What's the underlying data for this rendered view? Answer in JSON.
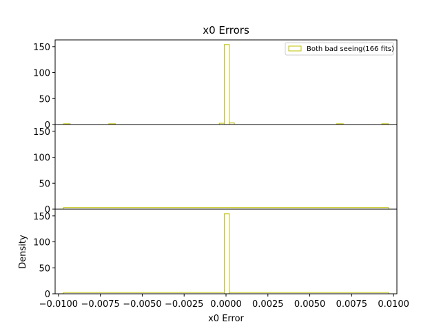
{
  "chart_data": {
    "type": "histogram",
    "title": "x0 Errors",
    "xlabel": "x0 Error",
    "ylabel": "Density",
    "xlim": [
      -0.0102,
      0.0102
    ],
    "x_ticks": [
      -0.01,
      -0.0075,
      -0.005,
      -0.0025,
      0.0,
      0.0025,
      0.005,
      0.0075,
      0.01
    ],
    "x_tick_labels": [
      "−0.0100",
      "−0.0075",
      "−0.0050",
      "−0.0025",
      "0.0000",
      "0.0025",
      "0.0050",
      "0.0075",
      "0.0100"
    ],
    "y_ticks": [
      0,
      50,
      100,
      150
    ],
    "y_tick_labels": [
      "0",
      "50",
      "100",
      "150"
    ],
    "color": "#bfbf00",
    "legend": {
      "label": "Both bad seeing(166 fits)",
      "location": "top-right"
    },
    "panels": [
      {
        "ylim": [
          0,
          163
        ],
        "bins": [
          {
            "x0": -0.0097,
            "x1": -0.0093,
            "value": 1.5
          },
          {
            "x0": -0.007,
            "x1": -0.0066,
            "value": 1.5
          },
          {
            "x0": -0.0004,
            "x1": -0.0001,
            "value": 2.5
          },
          {
            "x0": -0.0001,
            "x1": 0.0002,
            "value": 154
          },
          {
            "x0": 0.0002,
            "x1": 0.0005,
            "value": 3
          },
          {
            "x0": 0.0066,
            "x1": 0.007,
            "value": 1.5
          },
          {
            "x0": 0.0093,
            "x1": 0.0097,
            "value": 1.5
          }
        ]
      },
      {
        "ylim": [
          0,
          163
        ],
        "bins": [
          {
            "x0": -0.0097,
            "x1": 0.0097,
            "value": 3
          }
        ]
      },
      {
        "ylim": [
          0,
          163
        ],
        "bins": [
          {
            "x0": -0.0097,
            "x1": -0.0001,
            "value": 2.5
          },
          {
            "x0": -0.0001,
            "x1": 0.0002,
            "value": 154
          },
          {
            "x0": 0.0002,
            "x1": 0.0097,
            "value": 2.5
          }
        ]
      }
    ]
  }
}
